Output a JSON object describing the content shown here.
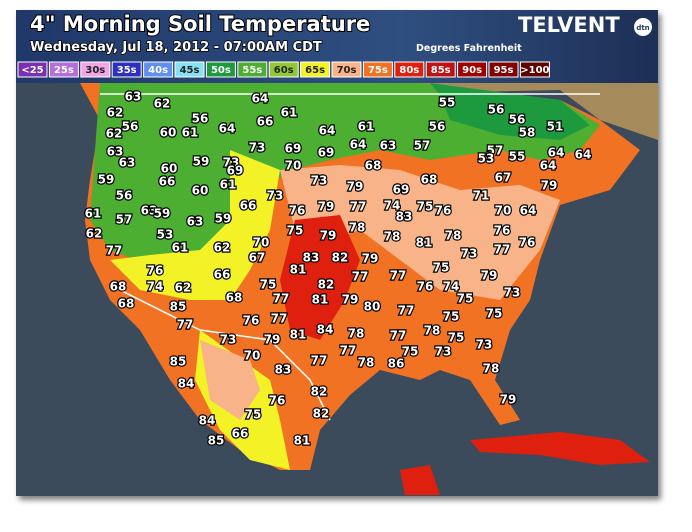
{
  "header": {
    "title": "4\" Morning Soil Temperature",
    "subtitle": "Wednesday, Jul 18, 2012 - 07:00AM CDT",
    "units": "Degrees Fahrenheit",
    "brand": "TELVENT",
    "brand_badge": "dtn"
  },
  "legend": [
    {
      "label": "<25",
      "color": "#7a2fb0"
    },
    {
      "label": "25s",
      "color": "#b46fd8"
    },
    {
      "label": "30s",
      "color": "#f2a6e6"
    },
    {
      "label": "35s",
      "color": "#2f2fbf"
    },
    {
      "label": "40s",
      "color": "#5f8ff0"
    },
    {
      "label": "45s",
      "color": "#86e2f2"
    },
    {
      "label": "50s",
      "color": "#1e9a3e"
    },
    {
      "label": "55s",
      "color": "#4caf32"
    },
    {
      "label": "60s",
      "color": "#92c834"
    },
    {
      "label": "65s",
      "color": "#f2f226"
    },
    {
      "label": "70s",
      "color": "#f8b488"
    },
    {
      "label": "75s",
      "color": "#f07222"
    },
    {
      "label": "80s",
      "color": "#e0200e"
    },
    {
      "label": "85s",
      "color": "#c01212"
    },
    {
      "label": "90s",
      "color": "#a00000"
    },
    {
      "label": "95s",
      "color": "#820000"
    },
    {
      "label": ">100",
      "color": "#5e0000"
    }
  ],
  "stations": [
    63,
    62,
    64,
    61,
    66,
    55,
    56,
    56,
    58,
    51,
    56,
    62,
    56,
    62,
    60,
    61,
    56,
    64,
    64,
    61,
    63,
    63,
    59,
    60,
    73,
    73,
    69,
    69,
    64,
    63,
    57,
    57,
    53,
    55,
    64,
    64,
    59,
    66,
    60,
    61,
    69,
    70,
    73,
    68,
    79,
    69,
    68,
    67,
    64,
    79,
    56,
    73,
    63,
    59,
    61,
    57,
    63,
    59,
    66,
    76,
    79,
    77,
    74,
    75,
    76,
    71,
    70,
    64,
    62,
    53,
    78,
    83,
    75,
    79,
    78,
    78,
    76,
    77,
    76,
    77,
    61,
    62,
    70,
    67,
    83,
    82,
    79,
    81,
    73,
    81,
    77,
    77,
    75,
    79,
    76,
    66,
    68,
    74,
    62,
    75,
    82,
    76,
    74,
    73,
    68,
    85,
    68,
    77,
    81,
    79,
    80,
    77,
    75,
    75,
    77,
    76,
    77,
    75,
    84,
    78,
    78,
    75,
    79,
    81,
    77,
    73,
    70,
    77,
    77,
    78,
    75,
    73,
    73,
    85,
    83,
    86,
    78,
    84,
    82,
    76,
    79,
    75,
    82,
    84,
    85,
    66,
    81
  ]
}
